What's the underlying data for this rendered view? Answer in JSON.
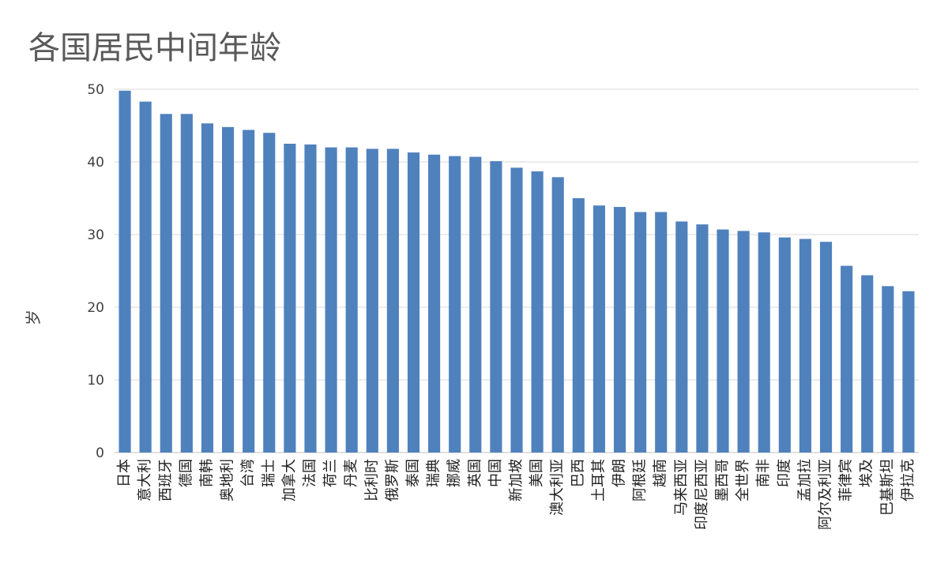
{
  "chart_data": {
    "type": "bar",
    "title": "各国居民中间年龄",
    "ylabel": "岁",
    "xlabel": "",
    "ylim": [
      0,
      50
    ],
    "yticks": [
      0,
      10,
      20,
      30,
      40,
      50
    ],
    "grid": true,
    "bar_color": "#4f81bd",
    "gridline_color": "#d9d9d9",
    "categories": [
      "日本",
      "意大利",
      "西班牙",
      "德国",
      "南韩",
      "奥地利",
      "台湾",
      "瑞士",
      "加拿大",
      "法国",
      "荷兰",
      "丹麦",
      "比利时",
      "俄罗斯",
      "泰国",
      "瑞典",
      "挪威",
      "英国",
      "中国",
      "新加坡",
      "美国",
      "澳大利亚",
      "巴西",
      "土耳其",
      "伊朗",
      "阿根廷",
      "越南",
      "马来西亚",
      "印度尼西亚",
      "墨西哥",
      "全世界",
      "南非",
      "印度",
      "孟加拉",
      "阿尔及利亚",
      "菲律宾",
      "埃及",
      "巴基斯坦",
      "伊拉克"
    ],
    "values": [
      49.8,
      48.3,
      46.6,
      46.6,
      45.3,
      44.8,
      44.4,
      44.0,
      42.5,
      42.4,
      42.0,
      42.0,
      41.8,
      41.8,
      41.3,
      41.0,
      40.8,
      40.7,
      40.1,
      39.2,
      38.7,
      37.9,
      35.0,
      34.0,
      33.8,
      33.1,
      33.1,
      31.8,
      31.4,
      30.7,
      30.5,
      30.3,
      29.6,
      29.4,
      29.0,
      25.7,
      24.4,
      22.9,
      22.2
    ]
  }
}
